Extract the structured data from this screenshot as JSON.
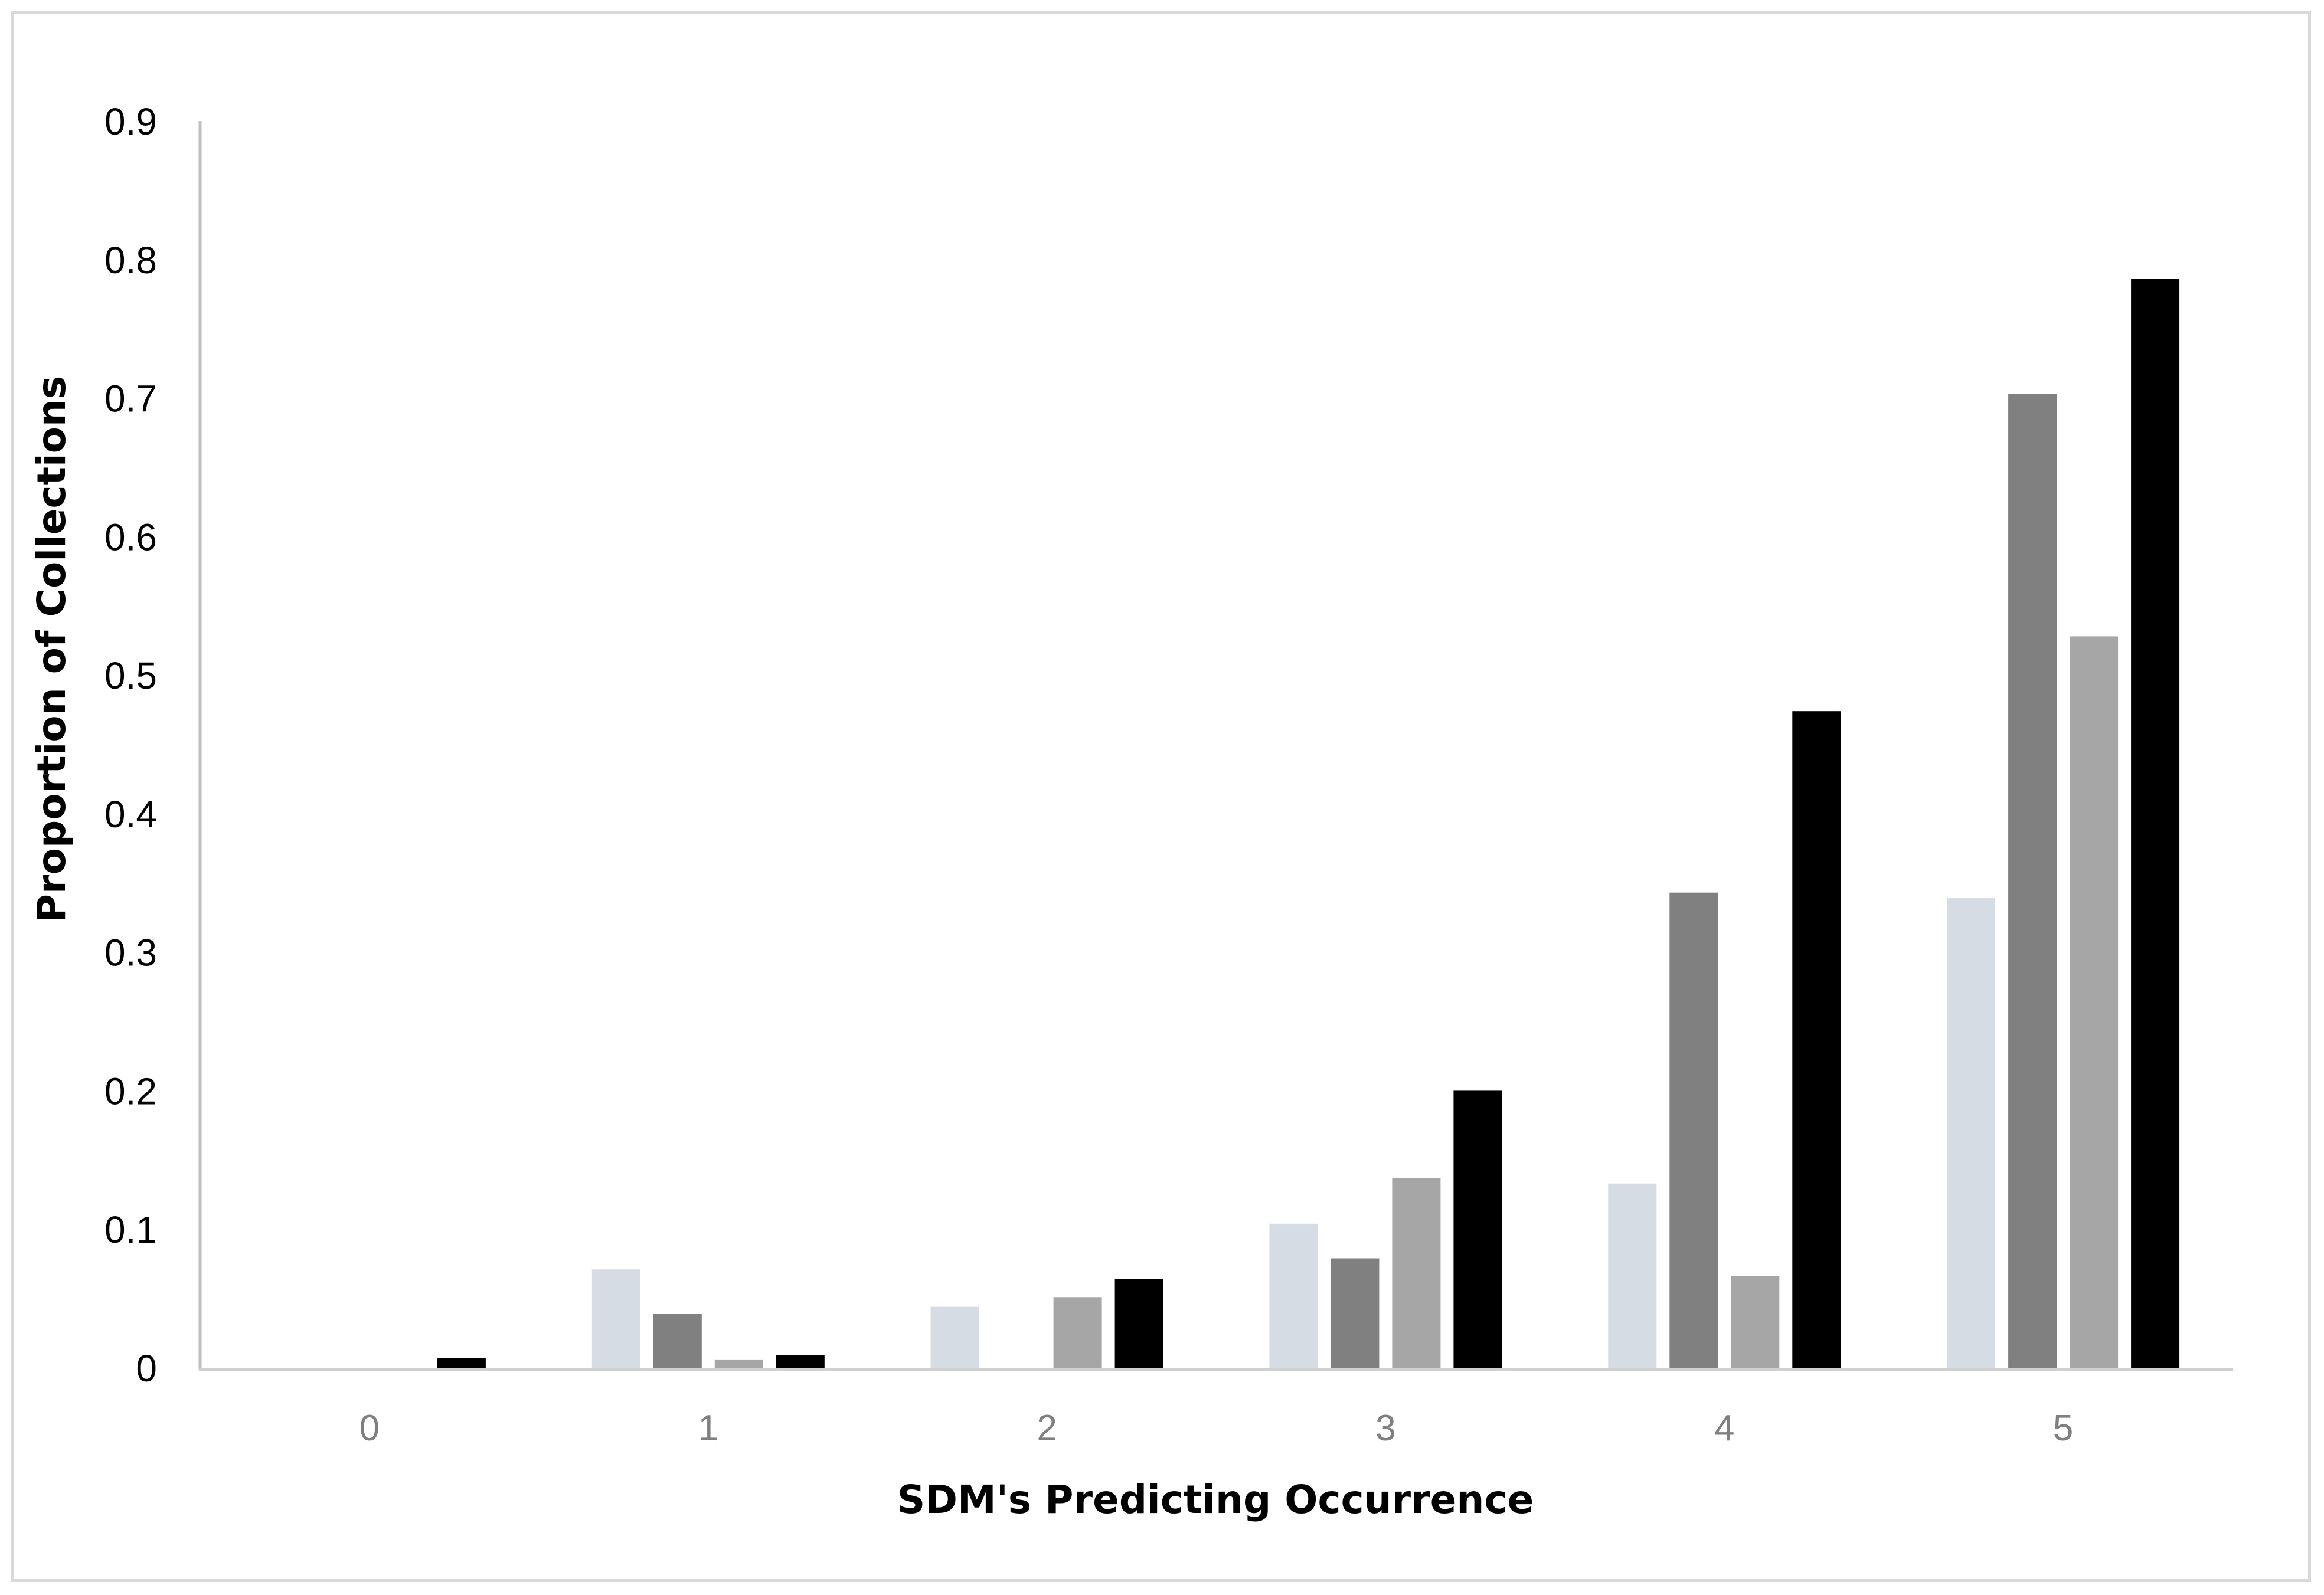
{
  "chart_data": {
    "type": "bar",
    "title": "",
    "xlabel": "SDM's Predicting Occurrence",
    "ylabel": "Proportion of Collections",
    "categories": [
      "0",
      "1",
      "2",
      "3",
      "4",
      "5"
    ],
    "ylim": [
      0,
      0.9
    ],
    "yticks": [
      "0",
      "0.1",
      "0.2",
      "0.3",
      "0.4",
      "0.5",
      "0.6",
      "0.7",
      "0.8",
      "0.9"
    ],
    "grid": false,
    "legend": "none",
    "series": [
      {
        "color": "#d6dce4",
        "values": [
          0,
          0.071,
          0.044,
          0.104,
          0.133,
          0.339
        ]
      },
      {
        "color": "#808080",
        "values": [
          0,
          0.039,
          0,
          0.079,
          0.343,
          0.703
        ]
      },
      {
        "color": "#a6a6a6",
        "values": [
          0,
          0.006,
          0.051,
          0.137,
          0.066,
          0.528
        ]
      },
      {
        "color": "#000000",
        "values": [
          0.007,
          0.009,
          0.064,
          0.2,
          0.474,
          0.786
        ]
      }
    ]
  }
}
